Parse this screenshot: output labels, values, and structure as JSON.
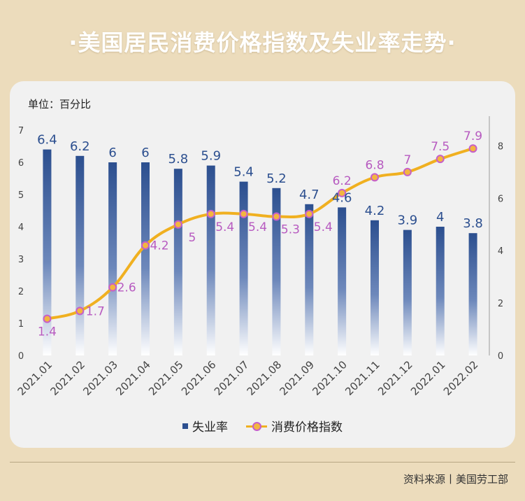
{
  "title": "·美国居民消费价格指数及失业率走势·",
  "unit_label": "单位：百分比",
  "source": "资料来源丨美国劳工部",
  "colors": {
    "bar_top": "#2c4f8f",
    "bar_bottom": "#ffffff",
    "line": "#f0b020",
    "marker_border": "#c65fc9",
    "cpi_label": "#b75ac0",
    "unemp_label": "#2c4f8f"
  },
  "chart_data": {
    "type": "bar",
    "categories": [
      "2021.01",
      "2021.02",
      "2021.03",
      "2021.04",
      "2021.05",
      "2021.06",
      "2021.07",
      "2021.08",
      "2021.09",
      "2021.10",
      "2021.11",
      "2021.12",
      "2022.01",
      "2022.02"
    ],
    "series": [
      {
        "name": "失业率",
        "type": "bar",
        "axis": "left",
        "values": [
          6.4,
          6.2,
          6,
          6,
          5.8,
          5.9,
          5.4,
          5.2,
          4.7,
          4.6,
          4.2,
          3.9,
          4,
          3.8
        ],
        "labels": [
          "6.4",
          "6.2",
          "6",
          "6",
          "5.8",
          "5.9",
          "5.4",
          "5.2",
          "4.7",
          "4.6",
          "4.2",
          "3.9",
          "4",
          "3.8"
        ]
      },
      {
        "name": "消费价格指数",
        "type": "line",
        "axis": "right",
        "values": [
          1.4,
          1.7,
          2.6,
          4.2,
          5,
          5.4,
          5.4,
          5.3,
          5.4,
          6.2,
          6.8,
          7,
          7.5,
          7.9
        ],
        "labels": [
          "1.4",
          "1.7",
          "2.6",
          "4.2",
          "5",
          "5.4",
          "5.4",
          "5.3",
          "5.4",
          "6.2",
          "6.8",
          "7",
          "7.5",
          "7.9"
        ]
      }
    ],
    "y_left": {
      "min": 0,
      "max": 7,
      "ticks": [
        "0",
        "1",
        "2",
        "3",
        "4",
        "5",
        "6",
        "7"
      ]
    },
    "y_right": {
      "min": 0,
      "max": 8.6,
      "ticks": [
        "0",
        "2",
        "4",
        "6",
        "8"
      ]
    },
    "legend": [
      "失业率",
      "消费价格指数"
    ],
    "legend_position": "bottom"
  }
}
